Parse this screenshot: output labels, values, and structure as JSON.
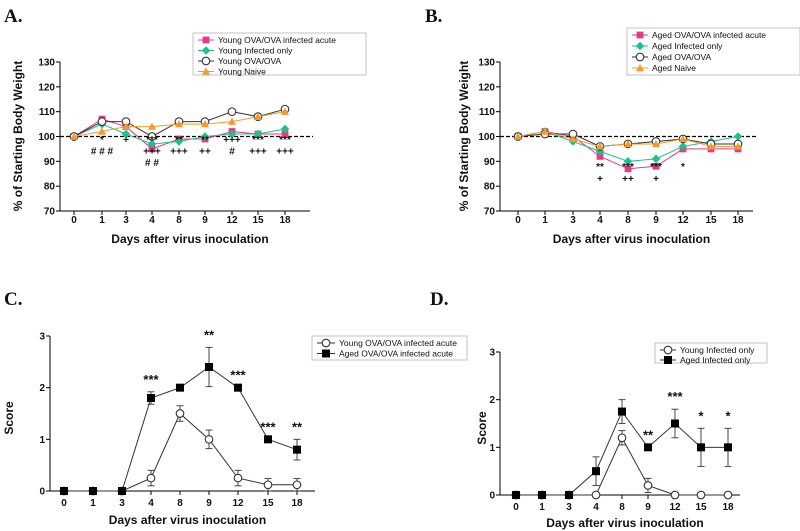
{
  "chart_data": [
    {
      "panel": "A.",
      "type": "line",
      "ylabel": "% of Starting Body Weight",
      "xlabel": "Days after virus inoculation",
      "categories": [
        "0",
        "1",
        "3",
        "4",
        "8",
        "9",
        "12",
        "15",
        "18"
      ],
      "ylim": [
        70,
        130
      ],
      "yticks": [
        "70",
        "80",
        "90",
        "100",
        "110",
        "120",
        "130"
      ],
      "reference_line": 100,
      "legend": "top-right",
      "series": [
        {
          "name": "Young OVA/OVA infected acute",
          "color": "#e8388a",
          "marker": "square",
          "values": [
            100,
            107,
            104,
            95,
            99,
            99,
            102,
            101,
            101
          ]
        },
        {
          "name": "Young Infected only",
          "color": "#1fc08a",
          "marker": "diamond",
          "values": [
            100,
            105,
            101,
            97,
            98,
            100,
            101,
            101,
            103
          ]
        },
        {
          "name": "Young OVA/OVA",
          "color": "#333333",
          "marker": "circle-open",
          "values": [
            100,
            106,
            106,
            100,
            106,
            106,
            110,
            108,
            111
          ]
        },
        {
          "name": "Young Naive",
          "color": "#f39a2a",
          "marker": "triangle",
          "values": [
            100,
            102,
            104,
            104,
            105,
            105,
            106,
            108,
            110
          ]
        }
      ],
      "annotations": [
        {
          "category": "1",
          "lines": [
            "*",
            "# # #"
          ]
        },
        {
          "category": "3",
          "lines": [
            "+"
          ]
        },
        {
          "category": "4",
          "lines": [
            "***",
            "+++",
            "# #"
          ]
        },
        {
          "category": "8",
          "lines": [
            "**",
            "+++"
          ]
        },
        {
          "category": "9",
          "lines": [
            "**",
            "++"
          ]
        },
        {
          "category": "12",
          "lines": [
            "+++",
            "#"
          ]
        },
        {
          "category": "15",
          "lines": [
            "***",
            "+++"
          ]
        },
        {
          "category": "18",
          "lines": [
            "***",
            "+++"
          ]
        }
      ]
    },
    {
      "panel": "B.",
      "type": "line",
      "ylabel": "% of Starting Body Weight",
      "xlabel": "Days after virus inoculation",
      "categories": [
        "0",
        "1",
        "3",
        "4",
        "8",
        "9",
        "12",
        "15",
        "18"
      ],
      "ylim": [
        70,
        130
      ],
      "yticks": [
        "70",
        "80",
        "90",
        "100",
        "110",
        "120",
        "130"
      ],
      "reference_line": 100,
      "legend": "top-right",
      "series": [
        {
          "name": "Aged OVA/OVA infected acute",
          "color": "#e8388a",
          "marker": "square",
          "values": [
            100,
            102,
            100,
            92,
            87,
            88,
            95,
            95,
            95
          ]
        },
        {
          "name": "Aged Infected only",
          "color": "#1fc08a",
          "marker": "diamond",
          "values": [
            100,
            102,
            98,
            94,
            90,
            91,
            96,
            98,
            100
          ]
        },
        {
          "name": "Aged OVA/OVA",
          "color": "#333333",
          "marker": "circle-open",
          "values": [
            100,
            101,
            101,
            96,
            97,
            98,
            99,
            97,
            97
          ]
        },
        {
          "name": "Aged Naive",
          "color": "#f39a2a",
          "marker": "triangle",
          "values": [
            100,
            102,
            99,
            96,
            97,
            97,
            99,
            96,
            96
          ]
        }
      ],
      "annotations": [
        {
          "category": "4",
          "lines": [
            "**",
            "+"
          ]
        },
        {
          "category": "8",
          "lines": [
            "***",
            "++"
          ]
        },
        {
          "category": "9",
          "lines": [
            "***",
            "+"
          ]
        },
        {
          "category": "12",
          "lines": [
            "*"
          ]
        }
      ]
    },
    {
      "panel": "C.",
      "type": "line",
      "ylabel": "Score",
      "xlabel": "Days after virus inoculation",
      "categories": [
        "0",
        "1",
        "3",
        "4",
        "8",
        "9",
        "12",
        "15",
        "18"
      ],
      "ylim": [
        0,
        3
      ],
      "yticks": [
        "0",
        "1",
        "2",
        "3"
      ],
      "legend": "top-right",
      "series": [
        {
          "name": "Young OVA/OVA infected acute",
          "marker": "circle-open",
          "values": [
            0,
            0,
            0,
            0.25,
            1.5,
            1.0,
            0.25,
            0.12,
            0.12
          ],
          "errors": [
            0,
            0,
            0,
            0.15,
            0.15,
            0.18,
            0.15,
            0.12,
            0.12
          ]
        },
        {
          "name": "Aged OVA/OVA infected acute",
          "marker": "square-filled",
          "values": [
            0,
            0,
            0,
            1.8,
            2.0,
            2.4,
            2.0,
            1.0,
            0.8
          ],
          "errors": [
            0,
            0,
            0,
            0.12,
            0,
            0.38,
            0,
            0,
            0.2
          ]
        }
      ],
      "annotations": [
        {
          "category": "4",
          "lines": [
            "***"
          ]
        },
        {
          "category": "9",
          "lines": [
            "**"
          ]
        },
        {
          "category": "12",
          "lines": [
            "***"
          ]
        },
        {
          "category": "15",
          "lines": [
            "***"
          ]
        },
        {
          "category": "18",
          "lines": [
            "**"
          ]
        }
      ]
    },
    {
      "panel": "D.",
      "type": "line",
      "ylabel": "Score",
      "xlabel": "Days after virus inoculation",
      "categories": [
        "0",
        "1",
        "3",
        "4",
        "8",
        "9",
        "12",
        "15",
        "18"
      ],
      "ylim": [
        0,
        3
      ],
      "yticks": [
        "0",
        "1",
        "2",
        "3"
      ],
      "legend": "top-right",
      "series": [
        {
          "name": "Young Infected only",
          "marker": "circle-open",
          "values": [
            0,
            0,
            0,
            0,
            1.2,
            0.2,
            0,
            0,
            0
          ],
          "errors": [
            0,
            0,
            0,
            0,
            0.15,
            0.15,
            0,
            0,
            0
          ]
        },
        {
          "name": "Aged Infected only",
          "marker": "square-filled",
          "values": [
            0,
            0,
            0,
            0.5,
            1.75,
            1.0,
            1.5,
            1.0,
            1.0
          ],
          "errors": [
            0,
            0,
            0,
            0.3,
            0.25,
            0,
            0.3,
            0.4,
            0.4
          ]
        }
      ],
      "annotations": [
        {
          "category": "9",
          "lines": [
            "**"
          ]
        },
        {
          "category": "12",
          "lines": [
            "***"
          ]
        },
        {
          "category": "15",
          "lines": [
            "*"
          ]
        },
        {
          "category": "18",
          "lines": [
            "*"
          ]
        }
      ]
    }
  ]
}
